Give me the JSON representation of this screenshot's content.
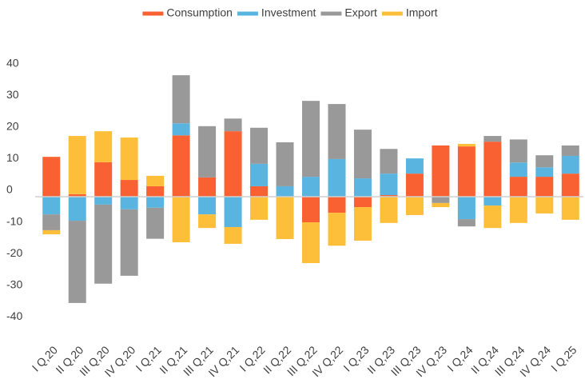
{
  "chart_data": {
    "type": "stacked_bar",
    "categories": [
      "I Q,20",
      "II Q,20",
      "III Q,20",
      "IV Q,20",
      "I Q,21",
      "II Q,21",
      "III Q,21",
      "IV Q,21",
      "I Q,22",
      "II Q,22",
      "III Q,22",
      "IV Q,22",
      "I Q,23",
      "II Q,23",
      "III Q,23",
      "IV Q,23",
      "I Q,24",
      "II Q,24",
      "III Q,24",
      "IV Q,24",
      "I Q,25"
    ],
    "series": [
      {
        "name": "Consumption",
        "color": "#fa6132",
        "values": [
          12.6,
          0.8,
          10.9,
          5.3,
          3.3,
          19.4,
          6.1,
          20.7,
          3.3,
          0,
          -8.1,
          -5.1,
          -3.3,
          0.5,
          7.3,
          16.2,
          15.9,
          17.4,
          6.3,
          6.3,
          7.3
        ]
      },
      {
        "name": "Investment",
        "color": "#5ab4e0",
        "values": [
          -5.6,
          -7.6,
          -2.5,
          -4,
          -3.5,
          3.8,
          -5.6,
          -9.6,
          7.1,
          3.3,
          6.3,
          11.9,
          5.8,
          6.8,
          4.8,
          0,
          -7.1,
          -2.8,
          4.5,
          3,
          5.6
        ]
      },
      {
        "name": "Export",
        "color": "#999999",
        "values": [
          -5,
          -26,
          -25,
          -21,
          -9.8,
          15.2,
          16.2,
          4,
          11.4,
          13.9,
          24,
          17.4,
          15.4,
          7.8,
          0,
          -2,
          -2.3,
          1.8,
          7.3,
          3.8,
          3.3
        ]
      },
      {
        "name": "Import",
        "color": "#fdbf3a",
        "values": [
          -1.3,
          18.4,
          9.8,
          13.4,
          3.3,
          -14.4,
          -4.3,
          -5.3,
          -7.3,
          -13.4,
          -12.9,
          -10.4,
          -10.6,
          -8.3,
          -5.8,
          -1.3,
          0.8,
          -7.1,
          -8.3,
          -5.3,
          -7.3
        ]
      }
    ],
    "ylim": [
      -45,
      45
    ],
    "yticks": [
      40,
      30,
      20,
      10,
      0,
      -10,
      -20,
      -30,
      -40
    ],
    "legend": "top"
  }
}
